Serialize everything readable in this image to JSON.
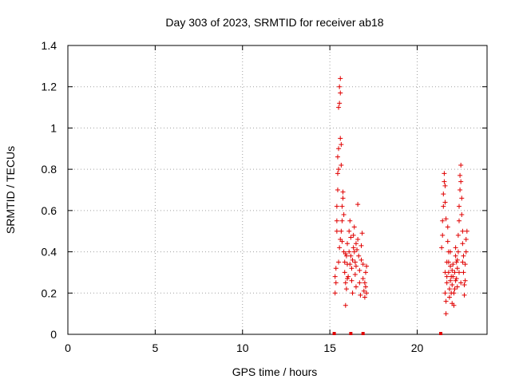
{
  "chart_data": {
    "type": "scatter",
    "title": "Day 303 of 2023, SRMTID for receiver ab18",
    "xlabel": "GPS time / hours",
    "ylabel": "SRMTID / TECUs",
    "xlim": [
      0,
      24
    ],
    "ylim": [
      0,
      1.4
    ],
    "xticks": [
      0,
      5,
      10,
      15,
      20
    ],
    "xtick_labels": [
      "0",
      "5",
      "10",
      "15",
      "20"
    ],
    "yticks": [
      0,
      0.2,
      0.4,
      0.6,
      0.8,
      1.0,
      1.2,
      1.4
    ],
    "ytick_labels": [
      "0",
      "0.2",
      "0.4",
      "0.6",
      "0.8",
      "1",
      "1.2",
      "1.4"
    ],
    "grid": true,
    "color": "#e00000",
    "marker": "plus",
    "series": [
      {
        "points": [
          [
            15.3,
            0.2
          ],
          [
            15.3,
            0.28
          ],
          [
            15.35,
            0.25
          ],
          [
            15.35,
            0.32
          ],
          [
            15.4,
            0.5
          ],
          [
            15.4,
            0.55
          ],
          [
            15.4,
            0.62
          ],
          [
            15.45,
            0.7
          ],
          [
            15.45,
            0.78
          ],
          [
            15.45,
            0.86
          ],
          [
            15.5,
            0.8
          ],
          [
            15.5,
            0.9
          ],
          [
            15.5,
            1.1
          ],
          [
            15.55,
            1.12
          ],
          [
            15.55,
            1.2
          ],
          [
            15.6,
            1.24
          ],
          [
            15.6,
            1.17
          ],
          [
            15.6,
            0.95
          ],
          [
            15.65,
            0.92
          ],
          [
            15.65,
            0.82
          ],
          [
            15.5,
            0.35
          ],
          [
            15.55,
            0.42
          ],
          [
            15.6,
            0.46
          ],
          [
            15.65,
            0.5
          ],
          [
            15.7,
            0.55
          ],
          [
            15.7,
            0.62
          ],
          [
            15.75,
            0.66
          ],
          [
            15.75,
            0.69
          ],
          [
            15.8,
            0.58
          ],
          [
            15.8,
            0.4
          ],
          [
            15.85,
            0.35
          ],
          [
            15.85,
            0.3
          ],
          [
            15.9,
            0.25
          ],
          [
            15.9,
            0.14
          ],
          [
            15.95,
            0.22
          ],
          [
            15.95,
            0.38
          ],
          [
            16.0,
            0.44
          ],
          [
            16.0,
            0.34
          ],
          [
            16.05,
            0.28
          ],
          [
            16.1,
            0.4
          ],
          [
            16.1,
            0.5
          ],
          [
            16.15,
            0.55
          ],
          [
            16.2,
            0.47
          ],
          [
            16.2,
            0.38
          ],
          [
            16.25,
            0.32
          ],
          [
            16.25,
            0.26
          ],
          [
            16.3,
            0.2
          ],
          [
            16.3,
            0.36
          ],
          [
            16.35,
            0.42
          ],
          [
            16.35,
            0.48
          ],
          [
            16.4,
            0.52
          ],
          [
            16.4,
            0.4
          ],
          [
            16.45,
            0.35
          ],
          [
            16.45,
            0.29
          ],
          [
            16.5,
            0.23
          ],
          [
            16.5,
            0.33
          ],
          [
            16.55,
            0.41
          ],
          [
            16.6,
            0.46
          ],
          [
            16.6,
            0.63
          ],
          [
            16.65,
            0.38
          ],
          [
            16.7,
            0.31
          ],
          [
            16.7,
            0.25
          ],
          [
            16.75,
            0.19
          ],
          [
            16.8,
            0.36
          ],
          [
            16.8,
            0.43
          ],
          [
            16.85,
            0.49
          ],
          [
            16.9,
            0.34
          ],
          [
            16.9,
            0.27
          ],
          [
            16.95,
            0.21
          ],
          [
            17.0,
            0.18
          ],
          [
            17.0,
            0.25
          ],
          [
            17.05,
            0.3
          ],
          [
            17.05,
            0.23
          ],
          [
            17.1,
            0.33
          ],
          [
            17.1,
            0.2
          ],
          [
            15.7,
            0.45
          ],
          [
            15.9,
            0.39
          ],
          [
            16.0,
            0.27
          ],
          [
            16.15,
            0.34
          ],
          [
            16.5,
            0.44
          ],
          [
            21.4,
            0.42
          ],
          [
            21.45,
            0.48
          ],
          [
            21.45,
            0.55
          ],
          [
            21.5,
            0.62
          ],
          [
            21.5,
            0.68
          ],
          [
            21.55,
            0.74
          ],
          [
            21.55,
            0.78
          ],
          [
            21.6,
            0.72
          ],
          [
            21.6,
            0.64
          ],
          [
            21.65,
            0.56
          ],
          [
            21.6,
            0.3
          ],
          [
            21.6,
            0.2
          ],
          [
            21.65,
            0.16
          ],
          [
            21.65,
            0.1
          ],
          [
            21.7,
            0.25
          ],
          [
            21.7,
            0.35
          ],
          [
            21.75,
            0.45
          ],
          [
            21.75,
            0.52
          ],
          [
            21.8,
            0.4
          ],
          [
            21.8,
            0.3
          ],
          [
            21.85,
            0.22
          ],
          [
            21.85,
            0.18
          ],
          [
            21.9,
            0.26
          ],
          [
            21.9,
            0.33
          ],
          [
            21.95,
            0.28
          ],
          [
            21.95,
            0.2
          ],
          [
            22.0,
            0.15
          ],
          [
            22.0,
            0.24
          ],
          [
            22.05,
            0.34
          ],
          [
            22.05,
            0.28
          ],
          [
            22.1,
            0.2
          ],
          [
            22.1,
            0.14
          ],
          [
            22.15,
            0.22
          ],
          [
            22.15,
            0.3
          ],
          [
            22.2,
            0.38
          ],
          [
            22.2,
            0.42
          ],
          [
            22.25,
            0.35
          ],
          [
            22.25,
            0.27
          ],
          [
            22.3,
            0.23
          ],
          [
            22.3,
            0.32
          ],
          [
            22.35,
            0.4
          ],
          [
            22.35,
            0.48
          ],
          [
            22.4,
            0.55
          ],
          [
            22.4,
            0.62
          ],
          [
            22.45,
            0.7
          ],
          [
            22.45,
            0.77
          ],
          [
            22.5,
            0.82
          ],
          [
            22.5,
            0.74
          ],
          [
            22.55,
            0.66
          ],
          [
            22.55,
            0.58
          ],
          [
            22.6,
            0.5
          ],
          [
            22.6,
            0.44
          ],
          [
            22.65,
            0.38
          ],
          [
            22.65,
            0.3
          ],
          [
            22.7,
            0.24
          ],
          [
            22.7,
            0.19
          ],
          [
            22.75,
            0.26
          ],
          [
            22.75,
            0.34
          ],
          [
            22.8,
            0.4
          ],
          [
            22.8,
            0.46
          ],
          [
            22.85,
            0.5
          ],
          [
            22.4,
            0.3
          ],
          [
            22.5,
            0.25
          ],
          [
            22.3,
            0.36
          ],
          [
            22.0,
            0.31
          ],
          [
            21.9,
            0.4
          ],
          [
            21.8,
            0.35
          ],
          [
            21.7,
            0.28
          ],
          [
            22.6,
            0.35
          ],
          [
            22.2,
            0.26
          ]
        ]
      }
    ],
    "baseline_markers_x": [
      15.25,
      16.2,
      16.9,
      21.35
    ]
  }
}
